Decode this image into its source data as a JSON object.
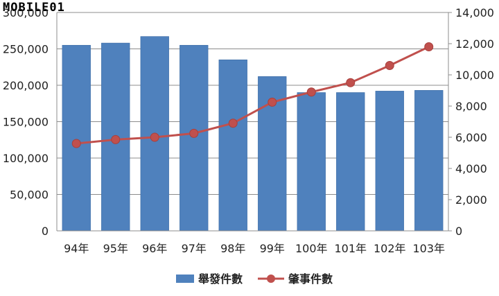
{
  "watermark": "MOBILE01",
  "chart_data": {
    "type": "bar",
    "categories": [
      "94年",
      "95年",
      "96年",
      "97年",
      "98年",
      "99年",
      "100年",
      "101年",
      "102年",
      "103年"
    ],
    "series": [
      {
        "name": "舉發件數",
        "type": "bar",
        "axis": "left",
        "color": "#4F81BD",
        "values": [
          255000,
          258000,
          267000,
          255000,
          235000,
          212000,
          190000,
          190000,
          192000,
          193000
        ]
      },
      {
        "name": "肇事件數",
        "type": "line",
        "axis": "right",
        "color": "#C0504D",
        "values": [
          5600,
          5850,
          6000,
          6250,
          6900,
          8250,
          8900,
          9500,
          10600,
          11800
        ]
      }
    ],
    "y_left": {
      "lim": [
        0,
        300000
      ],
      "ticks": [
        0,
        50000,
        100000,
        150000,
        200000,
        250000,
        300000
      ],
      "tick_labels": [
        "0",
        "50,000",
        "100,000",
        "150,000",
        "200,000",
        "250,000",
        "300,000"
      ]
    },
    "y_right": {
      "lim": [
        0,
        14000
      ],
      "ticks": [
        0,
        2000,
        4000,
        6000,
        8000,
        10000,
        12000,
        14000
      ],
      "tick_labels": [
        "0",
        "2,000",
        "4,000",
        "6,000",
        "8,000",
        "10,000",
        "12,000",
        "14,000"
      ]
    },
    "title": "",
    "xlabel": "",
    "grid": true,
    "legend_position": "bottom-center"
  }
}
